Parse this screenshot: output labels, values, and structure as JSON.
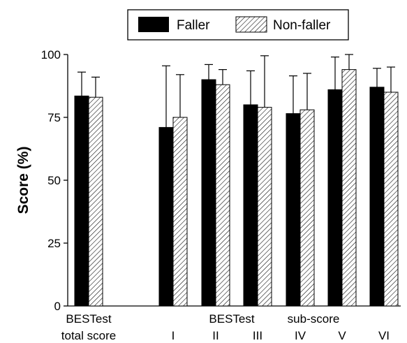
{
  "chart_data": {
    "type": "bar",
    "title": "",
    "xlabel": "",
    "ylabel": "Score (%)",
    "ylim": [
      0,
      100
    ],
    "yticks": [
      0,
      25,
      50,
      75,
      100
    ],
    "grid": false,
    "legend_position": "top-center",
    "group_labels": {
      "total": [
        "BESTest",
        "total score"
      ],
      "sub": [
        "BESTest",
        "sub-score"
      ]
    },
    "categories": [
      "",
      "I",
      "II",
      "III",
      "IV",
      "V",
      "VI"
    ],
    "series": [
      {
        "name": "Faller",
        "fill": "solid",
        "color": "#000000",
        "values": [
          83.5,
          71,
          90,
          80,
          76.5,
          86,
          87
        ],
        "errors": [
          9.5,
          24.5,
          6,
          13.5,
          15,
          13,
          7.5
        ]
      },
      {
        "name": "Non-faller",
        "fill": "hatched",
        "color": "#ffffff",
        "values": [
          83,
          75,
          88,
          79,
          78,
          94,
          85
        ],
        "errors": [
          8,
          17,
          6,
          20.5,
          14.5,
          6,
          10
        ]
      }
    ]
  }
}
